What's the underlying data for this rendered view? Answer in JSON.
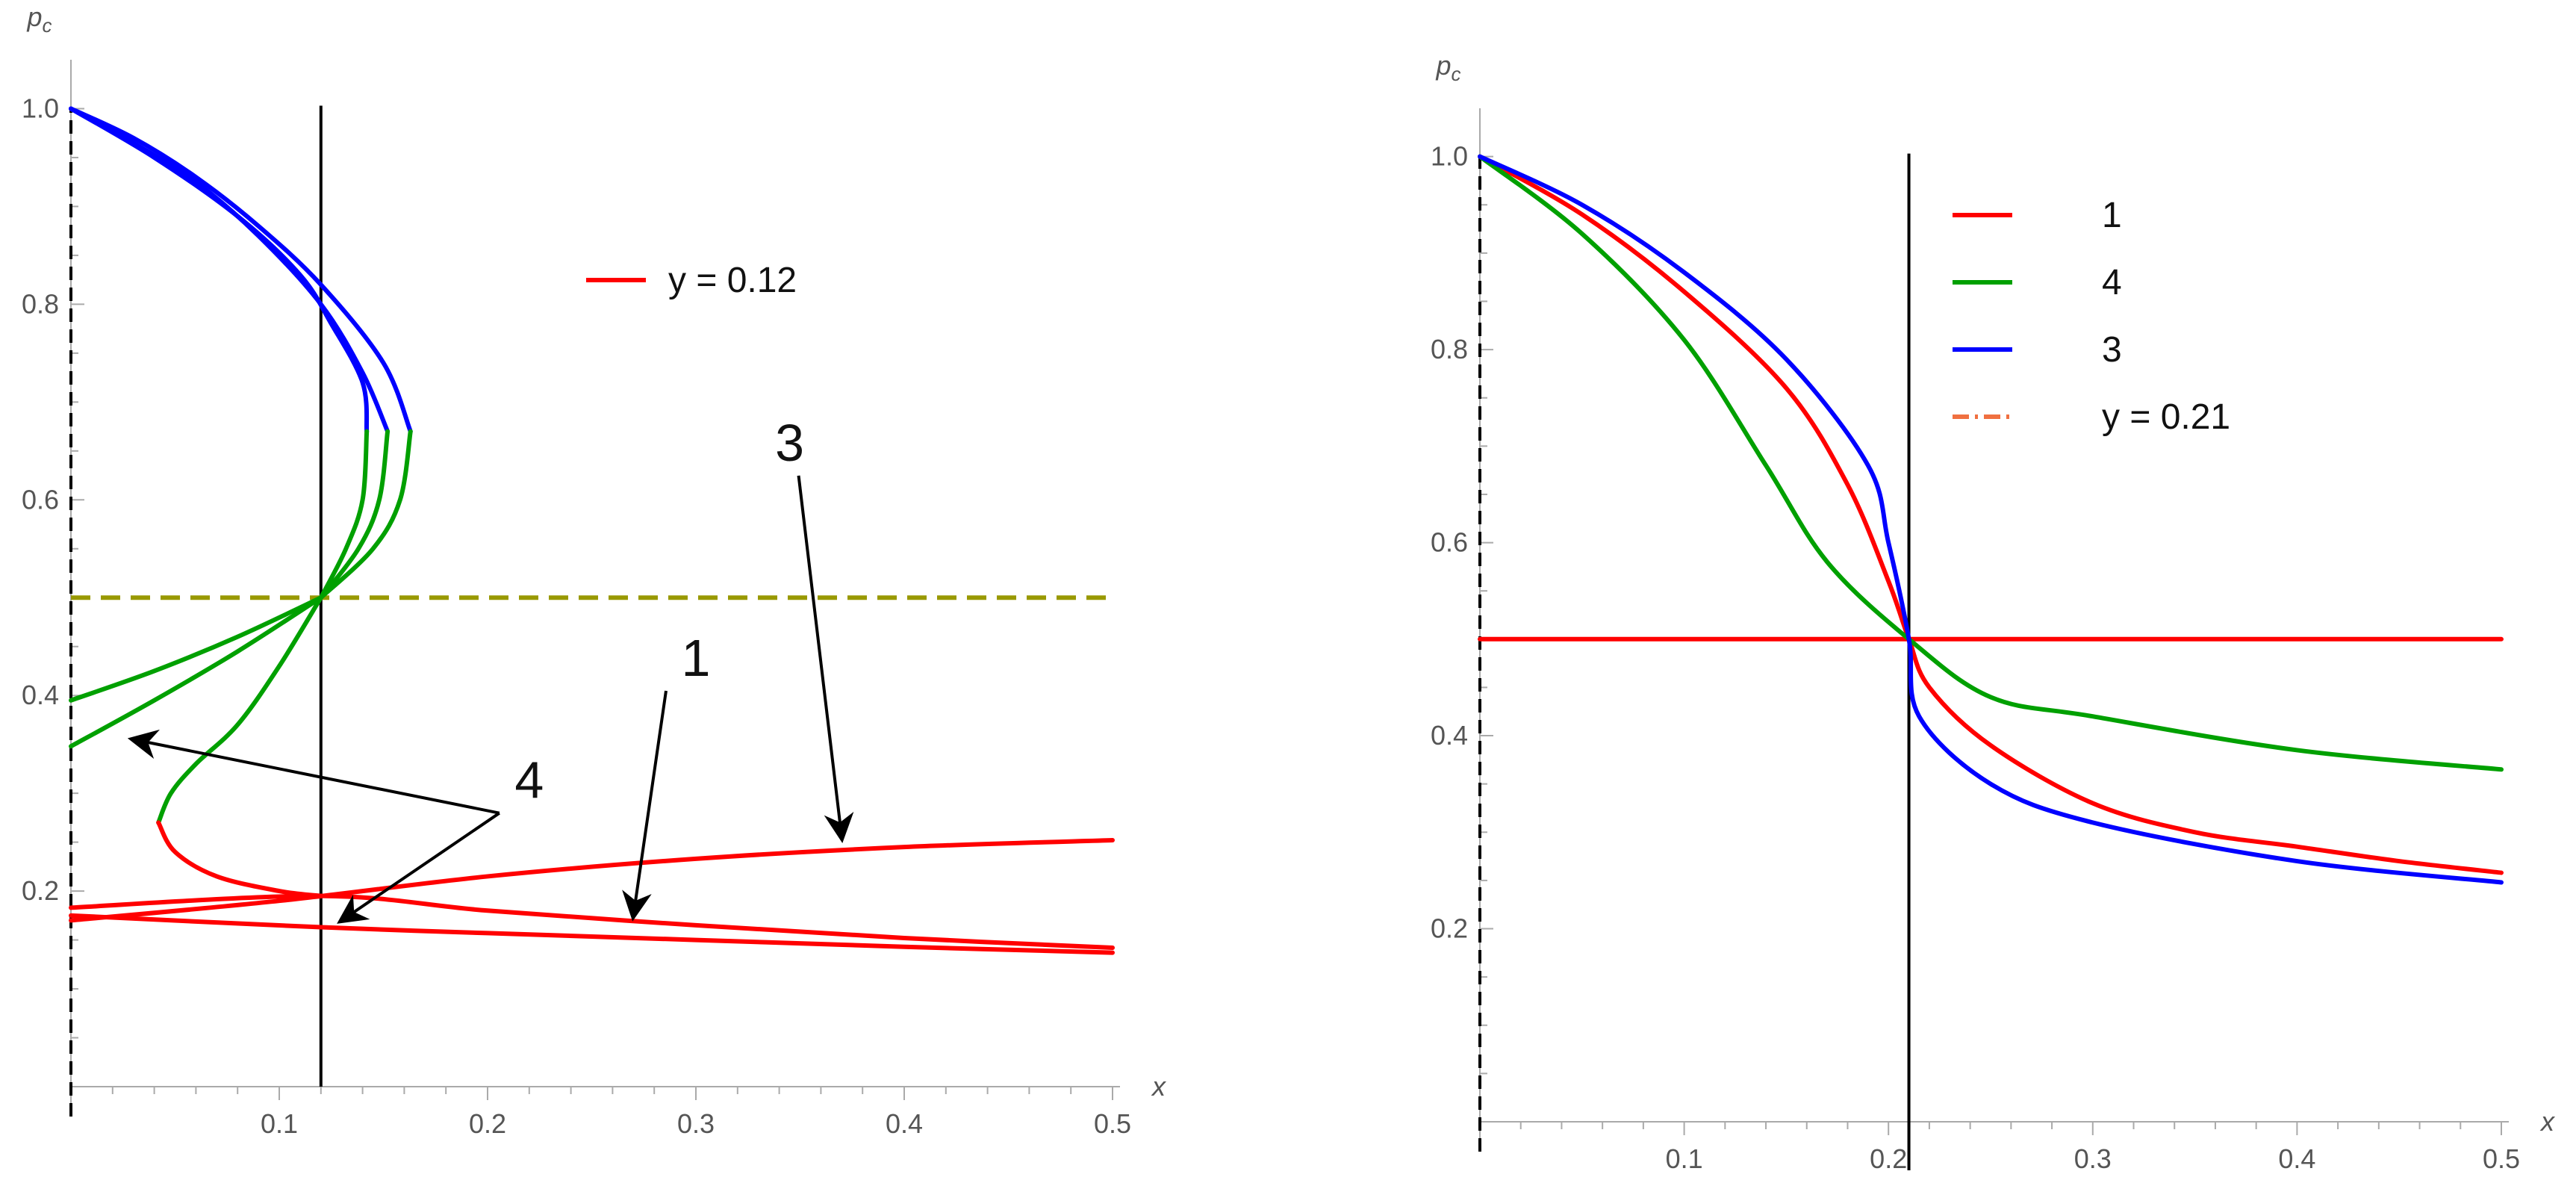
{
  "chart_data": [
    {
      "type": "line",
      "panel": "left",
      "title": "",
      "xlabel": "x",
      "ylabel": "p_c",
      "ylabel_main": "p",
      "ylabel_sub": "c",
      "xlim": [
        0,
        0.5
      ],
      "ylim": [
        0,
        1.05
      ],
      "xticks": [
        0.1,
        0.2,
        0.3,
        0.4,
        0.5
      ],
      "yticks": [
        0.2,
        0.4,
        0.6,
        0.8,
        1.0
      ],
      "xtick_labels": [
        "0.1",
        "0.2",
        "0.3",
        "0.4",
        "0.5"
      ],
      "ytick_labels": [
        "0.2",
        "0.4",
        "0.6",
        "0.8",
        "1.0"
      ],
      "vertical_line_x": 0.12,
      "horizontal_dashed_y": 0.5,
      "legend": {
        "position": "top-center",
        "entries": [
          {
            "label": "y = 0.12",
            "color": "#ff0000",
            "style": "solid"
          }
        ]
      },
      "series": [
        {
          "color": "#0000ff",
          "points": [
            [
              0,
              1.0
            ],
            [
              0.03,
              0.97
            ],
            [
              0.06,
              0.93
            ],
            [
              0.09,
              0.88
            ],
            [
              0.12,
              0.82
            ],
            [
              0.15,
              0.74
            ],
            [
              0.163,
              0.67
            ]
          ]
        },
        {
          "color": "#0000ff",
          "points": [
            [
              0,
              1.0
            ],
            [
              0.03,
              0.965
            ],
            [
              0.06,
              0.925
            ],
            [
              0.09,
              0.87
            ],
            [
              0.12,
              0.8
            ],
            [
              0.14,
              0.73
            ],
            [
              0.152,
              0.67
            ]
          ]
        },
        {
          "color": "#0000ff",
          "points": [
            [
              0,
              1.0
            ],
            [
              0.04,
              0.95
            ],
            [
              0.08,
              0.89
            ],
            [
              0.11,
              0.83
            ],
            [
              0.125,
              0.78
            ],
            [
              0.14,
              0.72
            ],
            [
              0.142,
              0.67
            ]
          ]
        },
        {
          "color": "#00a000",
          "points": [
            [
              0.163,
              0.67
            ],
            [
              0.158,
              0.6
            ],
            [
              0.145,
              0.55
            ],
            [
              0.12,
              0.5
            ]
          ]
        },
        {
          "color": "#00a000",
          "points": [
            [
              0.152,
              0.67
            ],
            [
              0.148,
              0.6
            ],
            [
              0.138,
              0.55
            ],
            [
              0.12,
              0.5
            ]
          ]
        },
        {
          "color": "#00a000",
          "points": [
            [
              0.142,
              0.67
            ],
            [
              0.14,
              0.6
            ],
            [
              0.132,
              0.55
            ],
            [
              0.12,
              0.5
            ]
          ]
        },
        {
          "color": "#00a000",
          "points": [
            [
              0.12,
              0.5
            ],
            [
              0.08,
              0.46
            ],
            [
              0.04,
              0.425
            ],
            [
              0,
              0.395
            ]
          ]
        },
        {
          "color": "#00a000",
          "points": [
            [
              0.12,
              0.5
            ],
            [
              0.08,
              0.445
            ],
            [
              0.04,
              0.395
            ],
            [
              0,
              0.348
            ]
          ]
        },
        {
          "color": "#00a000",
          "points": [
            [
              0.12,
              0.5
            ],
            [
              0.1,
              0.43
            ],
            [
              0.08,
              0.37
            ],
            [
              0.06,
              0.33
            ],
            [
              0.048,
              0.3
            ],
            [
              0.042,
              0.27
            ]
          ]
        },
        {
          "color": "#ff0000",
          "points": [
            [
              0.042,
              0.27
            ],
            [
              0.05,
              0.24
            ],
            [
              0.07,
              0.215
            ],
            [
              0.1,
              0.2
            ],
            [
              0.12,
              0.195
            ]
          ]
        },
        {
          "color": "#ff0000",
          "points": [
            [
              0,
              0.17
            ],
            [
              0.1,
              0.19
            ],
            [
              0.2,
              0.215
            ],
            [
              0.3,
              0.233
            ],
            [
              0.4,
              0.245
            ],
            [
              0.5,
              0.252
            ]
          ]
        },
        {
          "color": "#ff0000",
          "points": [
            [
              0,
              0.183
            ],
            [
              0.12,
              0.195
            ],
            [
              0.2,
              0.18
            ],
            [
              0.3,
              0.165
            ],
            [
              0.4,
              0.152
            ],
            [
              0.5,
              0.142
            ]
          ]
        },
        {
          "color": "#ff0000",
          "points": [
            [
              0,
              0.175
            ],
            [
              0.12,
              0.163
            ],
            [
              0.2,
              0.157
            ],
            [
              0.3,
              0.15
            ],
            [
              0.4,
              0.143
            ],
            [
              0.5,
              0.137
            ]
          ]
        }
      ],
      "annotations": [
        {
          "text": "3",
          "label_at": [
            0.345,
            0.64
          ],
          "arrows_to": [
            [
              0.37,
              0.255
            ]
          ]
        },
        {
          "text": "1",
          "label_at": [
            0.3,
            0.42
          ],
          "arrows_to": [
            [
              0.27,
              0.175
            ]
          ]
        },
        {
          "text": "4",
          "label_at": [
            0.22,
            0.295
          ],
          "arrows_to": [
            [
              0.03,
              0.355
            ],
            [
              0.13,
              0.17
            ]
          ]
        }
      ]
    },
    {
      "type": "line",
      "panel": "right",
      "title": "",
      "xlabel": "x",
      "ylabel": "p_c",
      "ylabel_main": "p",
      "ylabel_sub": "c",
      "xlim": [
        0,
        0.5
      ],
      "ylim": [
        0,
        1.05
      ],
      "xticks": [
        0.1,
        0.2,
        0.3,
        0.4,
        0.5
      ],
      "yticks": [
        0.2,
        0.4,
        0.6,
        0.8,
        1.0
      ],
      "xtick_labels": [
        "0.1",
        "0.2",
        "0.3",
        "0.4",
        "0.5"
      ],
      "ytick_labels": [
        "0.2",
        "0.4",
        "0.6",
        "0.8",
        "1.0"
      ],
      "vertical_line_x": 0.21,
      "legend": {
        "position": "top-center",
        "entries": [
          {
            "label": "1",
            "color": "#ff0000",
            "style": "solid"
          },
          {
            "label": "4",
            "color": "#00a000",
            "style": "solid"
          },
          {
            "label": "3",
            "color": "#0000ff",
            "style": "solid"
          },
          {
            "label": "y = 0.21",
            "color": "#f07040",
            "style": "dot-dash"
          }
        ]
      },
      "series": [
        {
          "name": "1",
          "color": "#ff0000",
          "points": [
            [
              0,
              1.0
            ],
            [
              0.05,
              0.94
            ],
            [
              0.1,
              0.86
            ],
            [
              0.15,
              0.76
            ],
            [
              0.18,
              0.66
            ],
            [
              0.2,
              0.56
            ],
            [
              0.21,
              0.5
            ],
            [
              0.22,
              0.45
            ],
            [
              0.25,
              0.39
            ],
            [
              0.3,
              0.33
            ],
            [
              0.35,
              0.3
            ],
            [
              0.4,
              0.285
            ],
            [
              0.45,
              0.27
            ],
            [
              0.5,
              0.258
            ]
          ]
        },
        {
          "name": "1",
          "color": "#ff0000",
          "points": [
            [
              0,
              0.5
            ],
            [
              0.5,
              0.5
            ]
          ]
        },
        {
          "name": "4",
          "color": "#00a000",
          "points": [
            [
              0,
              1.0
            ],
            [
              0.05,
              0.92
            ],
            [
              0.1,
              0.81
            ],
            [
              0.14,
              0.68
            ],
            [
              0.17,
              0.58
            ],
            [
              0.21,
              0.5
            ],
            [
              0.25,
              0.44
            ],
            [
              0.3,
              0.42
            ],
            [
              0.4,
              0.385
            ],
            [
              0.5,
              0.365
            ]
          ]
        },
        {
          "name": "3",
          "color": "#0000ff",
          "points": [
            [
              0,
              1.0
            ],
            [
              0.05,
              0.95
            ],
            [
              0.1,
              0.88
            ],
            [
              0.15,
              0.79
            ],
            [
              0.19,
              0.68
            ],
            [
              0.2,
              0.6
            ],
            [
              0.21,
              0.5
            ],
            [
              0.215,
              0.42
            ],
            [
              0.25,
              0.35
            ],
            [
              0.3,
              0.31
            ],
            [
              0.4,
              0.27
            ],
            [
              0.5,
              0.248
            ]
          ]
        }
      ]
    }
  ]
}
